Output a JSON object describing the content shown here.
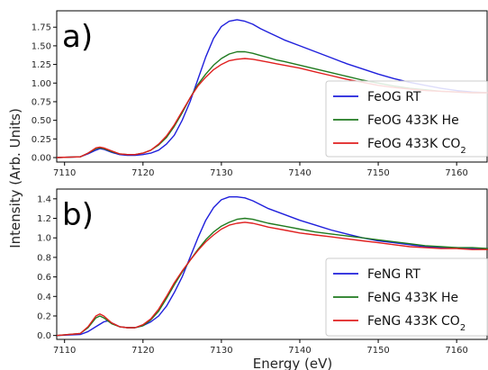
{
  "chart_data": [
    {
      "type": "line",
      "panel_label": "a)",
      "xlim": [
        7109,
        7164
      ],
      "ylim": [
        -0.06,
        1.97
      ],
      "x_ticks": [
        7110,
        7120,
        7130,
        7140,
        7150,
        7160
      ],
      "y_ticks": [
        0.0,
        0.25,
        0.5,
        0.75,
        1.0,
        1.25,
        1.5,
        1.75
      ],
      "y_tick_labels": [
        "0.00",
        "0.25",
        "0.50",
        "0.75",
        "1.00",
        "1.25",
        "1.50",
        "1.75"
      ],
      "grid": false,
      "legend_position": "lower-right",
      "series": [
        {
          "name": "FeOG RT",
          "color": "#1f1fdc",
          "x": [
            7109,
            7112,
            7113,
            7114,
            7114.5,
            7115,
            7116,
            7117,
            7118,
            7119,
            7120,
            7121,
            7122,
            7123,
            7124,
            7125,
            7126,
            7127,
            7128,
            7129,
            7130,
            7131,
            7132,
            7133,
            7134,
            7135,
            7136,
            7137,
            7138,
            7140,
            7142,
            7144,
            7146,
            7148,
            7150,
            7152,
            7154,
            7156,
            7158,
            7160,
            7162,
            7164
          ],
          "y": [
            0.0,
            0.01,
            0.05,
            0.1,
            0.12,
            0.11,
            0.07,
            0.04,
            0.03,
            0.03,
            0.04,
            0.06,
            0.1,
            0.18,
            0.3,
            0.5,
            0.75,
            1.05,
            1.35,
            1.6,
            1.76,
            1.83,
            1.85,
            1.83,
            1.79,
            1.73,
            1.68,
            1.63,
            1.58,
            1.5,
            1.42,
            1.34,
            1.26,
            1.19,
            1.12,
            1.06,
            1.01,
            0.97,
            0.93,
            0.9,
            0.88,
            0.87
          ]
        },
        {
          "name": "FeOG 433K He",
          "color": "#1f7a1f",
          "x": [
            7109,
            7112,
            7113,
            7114,
            7114.5,
            7115,
            7116,
            7117,
            7118,
            7119,
            7120,
            7121,
            7122,
            7123,
            7124,
            7125,
            7126,
            7127,
            7128,
            7129,
            7130,
            7131,
            7132,
            7133,
            7134,
            7135,
            7136,
            7137,
            7138,
            7140,
            7142,
            7144,
            7146,
            7148,
            7150,
            7152,
            7154,
            7156,
            7158,
            7160,
            7162,
            7164
          ],
          "y": [
            0.0,
            0.01,
            0.06,
            0.12,
            0.13,
            0.12,
            0.08,
            0.05,
            0.04,
            0.04,
            0.06,
            0.1,
            0.17,
            0.27,
            0.42,
            0.6,
            0.8,
            0.98,
            1.12,
            1.24,
            1.33,
            1.39,
            1.42,
            1.42,
            1.4,
            1.37,
            1.34,
            1.31,
            1.29,
            1.24,
            1.19,
            1.14,
            1.09,
            1.04,
            1.0,
            0.96,
            0.93,
            0.91,
            0.89,
            0.88,
            0.87,
            0.87
          ]
        },
        {
          "name": "FeOG 433K CO",
          "name_subscript": "2",
          "color": "#e01f1f",
          "x": [
            7109,
            7112,
            7113,
            7114,
            7114.5,
            7115,
            7116,
            7117,
            7118,
            7119,
            7120,
            7121,
            7122,
            7123,
            7124,
            7125,
            7126,
            7127,
            7128,
            7129,
            7130,
            7131,
            7132,
            7133,
            7134,
            7135,
            7136,
            7137,
            7138,
            7140,
            7142,
            7144,
            7146,
            7148,
            7150,
            7152,
            7154,
            7156,
            7158,
            7160,
            7162,
            7164
          ],
          "y": [
            0.0,
            0.01,
            0.06,
            0.13,
            0.14,
            0.13,
            0.09,
            0.05,
            0.04,
            0.04,
            0.06,
            0.1,
            0.18,
            0.29,
            0.44,
            0.62,
            0.8,
            0.96,
            1.08,
            1.18,
            1.25,
            1.3,
            1.32,
            1.33,
            1.32,
            1.3,
            1.28,
            1.26,
            1.24,
            1.2,
            1.15,
            1.1,
            1.05,
            1.01,
            0.97,
            0.94,
            0.92,
            0.9,
            0.89,
            0.88,
            0.87,
            0.87
          ]
        }
      ]
    },
    {
      "type": "line",
      "panel_label": "b)",
      "xlim": [
        7109,
        7164
      ],
      "ylim": [
        -0.04,
        1.5
      ],
      "x_ticks": [
        7110,
        7120,
        7130,
        7140,
        7150,
        7160
      ],
      "y_ticks": [
        0.0,
        0.2,
        0.4,
        0.6,
        0.8,
        1.0,
        1.2,
        1.4
      ],
      "y_tick_labels": [
        "0.0",
        "0.2",
        "0.4",
        "0.6",
        "0.8",
        "1.0",
        "1.2",
        "1.4"
      ],
      "grid": false,
      "legend_position": "lower-right",
      "series": [
        {
          "name": "FeNG RT",
          "color": "#1f1fdc",
          "x": [
            7109,
            7112,
            7113,
            7114,
            7115,
            7115.5,
            7116,
            7117,
            7118,
            7119,
            7120,
            7121,
            7122,
            7123,
            7124,
            7125,
            7126,
            7127,
            7128,
            7129,
            7130,
            7131,
            7132,
            7133,
            7134,
            7135,
            7136,
            7138,
            7140,
            7142,
            7144,
            7146,
            7148,
            7150,
            7152,
            7154,
            7156,
            7158,
            7160,
            7162,
            7164
          ],
          "y": [
            0.0,
            0.01,
            0.04,
            0.09,
            0.14,
            0.15,
            0.13,
            0.09,
            0.08,
            0.08,
            0.1,
            0.14,
            0.2,
            0.3,
            0.44,
            0.6,
            0.8,
            1.0,
            1.18,
            1.31,
            1.39,
            1.42,
            1.42,
            1.41,
            1.38,
            1.34,
            1.3,
            1.24,
            1.18,
            1.13,
            1.08,
            1.04,
            1.0,
            0.97,
            0.95,
            0.93,
            0.91,
            0.9,
            0.9,
            0.89,
            0.89
          ]
        },
        {
          "name": "FeNG 433K He",
          "color": "#1f7a1f",
          "x": [
            7109,
            7112,
            7113,
            7114,
            7114.5,
            7115,
            7116,
            7117,
            7118,
            7119,
            7120,
            7121,
            7122,
            7123,
            7124,
            7125,
            7126,
            7127,
            7128,
            7129,
            7130,
            7131,
            7132,
            7133,
            7134,
            7135,
            7136,
            7138,
            7140,
            7142,
            7144,
            7146,
            7148,
            7150,
            7152,
            7154,
            7156,
            7158,
            7160,
            7162,
            7164
          ],
          "y": [
            0.0,
            0.02,
            0.08,
            0.18,
            0.2,
            0.18,
            0.12,
            0.09,
            0.08,
            0.08,
            0.1,
            0.16,
            0.25,
            0.38,
            0.52,
            0.65,
            0.77,
            0.88,
            0.98,
            1.06,
            1.12,
            1.16,
            1.19,
            1.2,
            1.19,
            1.17,
            1.15,
            1.12,
            1.09,
            1.06,
            1.04,
            1.02,
            1.0,
            0.98,
            0.96,
            0.94,
            0.92,
            0.91,
            0.9,
            0.9,
            0.89
          ]
        },
        {
          "name": "FeNG 433K CO",
          "name_subscript": "2",
          "color": "#e01f1f",
          "x": [
            7109,
            7112,
            7113,
            7114,
            7114.5,
            7115,
            7116,
            7117,
            7118,
            7119,
            7120,
            7121,
            7122,
            7123,
            7124,
            7125,
            7126,
            7127,
            7128,
            7129,
            7130,
            7131,
            7132,
            7133,
            7134,
            7135,
            7136,
            7138,
            7140,
            7142,
            7144,
            7146,
            7148,
            7150,
            7152,
            7154,
            7156,
            7158,
            7160,
            7162,
            7164
          ],
          "y": [
            0.0,
            0.02,
            0.09,
            0.2,
            0.22,
            0.2,
            0.13,
            0.09,
            0.08,
            0.08,
            0.11,
            0.17,
            0.27,
            0.4,
            0.54,
            0.66,
            0.77,
            0.87,
            0.96,
            1.03,
            1.09,
            1.13,
            1.15,
            1.16,
            1.15,
            1.13,
            1.11,
            1.08,
            1.05,
            1.03,
            1.01,
            0.99,
            0.97,
            0.95,
            0.93,
            0.91,
            0.9,
            0.89,
            0.89,
            0.88,
            0.88
          ]
        }
      ]
    }
  ],
  "xlabel": "Energy (eV)",
  "ylabel": "Intensity (Arb. Units)"
}
